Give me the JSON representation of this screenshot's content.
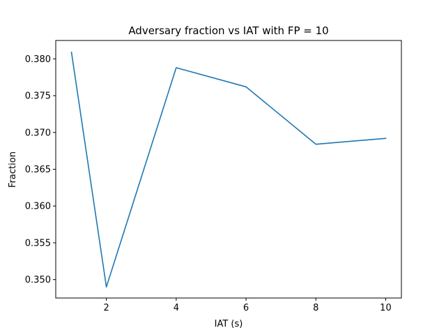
{
  "chart_data": {
    "type": "line",
    "title": "Adversary fraction vs IAT with FP = 10",
    "xlabel": "IAT (s)",
    "ylabel": "Fraction",
    "x": [
      1,
      2,
      4,
      6,
      8,
      10
    ],
    "series": [
      {
        "values": [
          0.3809,
          0.349,
          0.3788,
          0.3762,
          0.3684,
          0.3692
        ],
        "color": "#1f77b4"
      }
    ],
    "xlim": [
      0.55,
      10.45
    ],
    "ylim": [
      0.3475,
      0.3825
    ],
    "xticks": [
      2,
      4,
      6,
      8,
      10
    ],
    "xtick_labels": [
      "2",
      "4",
      "6",
      "8",
      "10"
    ],
    "yticks": [
      0.35,
      0.355,
      0.36,
      0.365,
      0.37,
      0.375,
      0.38
    ],
    "ytick_labels": [
      "0.350",
      "0.355",
      "0.360",
      "0.365",
      "0.370",
      "0.375",
      "0.380"
    ],
    "grid": false,
    "legend": false
  }
}
